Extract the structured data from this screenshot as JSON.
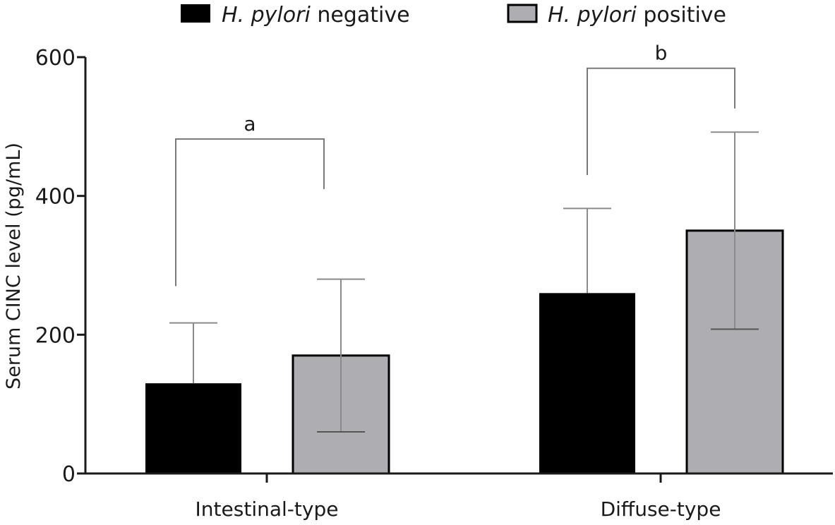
{
  "chart_data": {
    "type": "bar",
    "ylabel": "Serum CINC level (pg/mL)",
    "ylim": [
      0,
      600
    ],
    "yticks": [
      "0",
      "200",
      "400",
      "600"
    ],
    "categories": [
      "Intestinal-type",
      "Diffuse-type"
    ],
    "series": [
      {
        "name_italic": "H. pylori",
        "name_suffix": " negative",
        "color": "#000000",
        "values": [
          130,
          260
        ],
        "error": [
          87,
          122
        ]
      },
      {
        "name_italic": "H. pylori",
        "name_suffix": " positive",
        "color": "#adadb2",
        "values": [
          170,
          350
        ],
        "error": [
          110,
          142
        ]
      }
    ],
    "legend_position": "top",
    "grid": false,
    "significance": [
      {
        "label": "a",
        "category_index": 0,
        "left_y": 270,
        "right_y": 410,
        "top_y": 482
      },
      {
        "label": "b",
        "category_index": 1,
        "left_y": 430,
        "right_y": 526,
        "top_y": 584
      }
    ]
  }
}
